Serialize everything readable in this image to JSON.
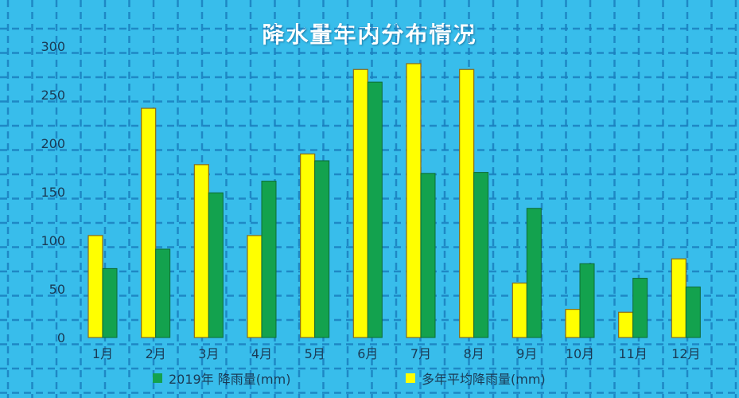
{
  "colors": {
    "background": "#38bdeb",
    "grid": "#1a7fbf",
    "avg_bar": "#ffff00",
    "bar_2019": "#13a24e",
    "text": "#1a3a55",
    "title": "#ffffff"
  },
  "chart_data": {
    "type": "bar",
    "title": "降水量年内分布情况",
    "categories": [
      "1月",
      "2月",
      "3月",
      "4月",
      "5月",
      "6月",
      "7月",
      "8月",
      "9月",
      "10月",
      "11月",
      "12月"
    ],
    "yticks": [
      "0",
      "50",
      "100",
      "150",
      "200",
      "250",
      "300"
    ],
    "ylim": [
      0,
      300
    ],
    "grid": true,
    "legend_position": "bottom",
    "series": [
      {
        "name": "多年平均降雨量(mm)",
        "color": "#ffff00",
        "values": [
          105,
          236,
          178,
          105,
          189,
          276,
          282,
          276,
          56,
          29,
          26,
          81
        ]
      },
      {
        "name": "2019年 降雨量(mm)",
        "color": "#13a24e",
        "values": [
          71,
          91,
          149,
          161,
          182,
          263,
          169,
          170,
          133,
          76,
          61,
          52
        ]
      }
    ]
  },
  "legend": {
    "item_2019": "2019年 降雨量(mm)",
    "item_avg": "多年平均降雨量(mm)"
  }
}
